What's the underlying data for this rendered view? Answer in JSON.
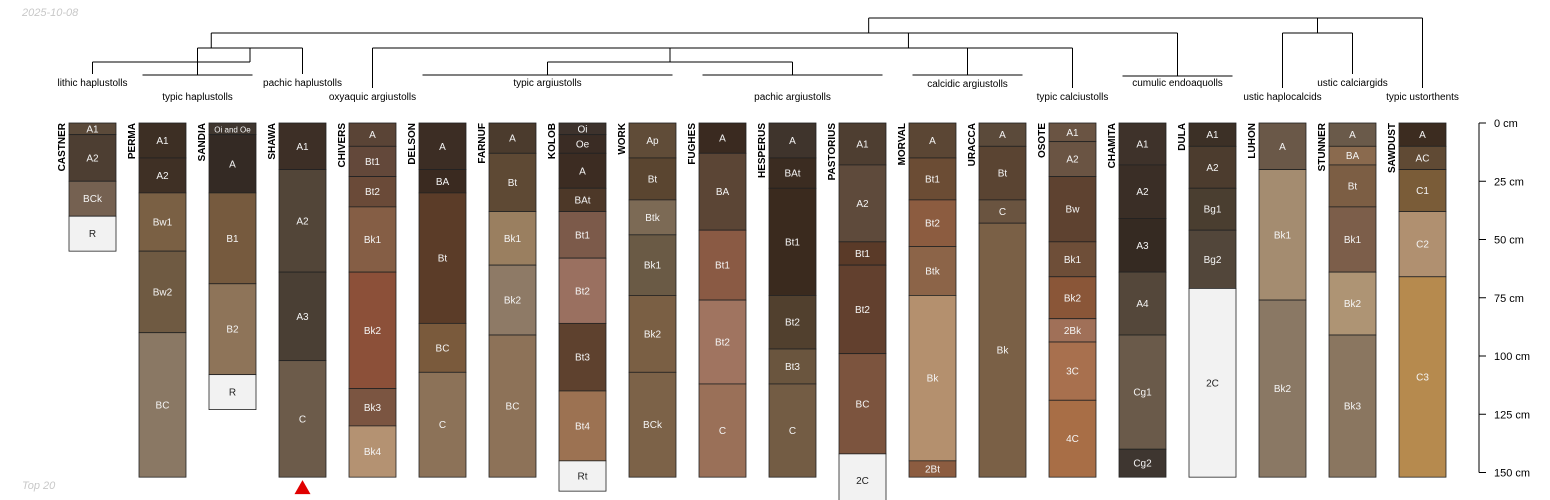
{
  "date": "2025-10-08",
  "footer": "Top 20",
  "depth_axis": {
    "unit": "cm",
    "max": 150,
    "ticks": [
      {
        "value": 0,
        "label": "0 cm"
      },
      {
        "value": 25,
        "label": "25 cm"
      },
      {
        "value": 50,
        "label": "50 cm"
      },
      {
        "value": 75,
        "label": "75 cm"
      },
      {
        "value": 100,
        "label": "100 cm"
      },
      {
        "value": 125,
        "label": "125 cm"
      },
      {
        "value": 150,
        "label": "150 cm"
      }
    ]
  },
  "colors": {
    "outline": "#222222",
    "marker": "#e00000",
    "tree": "#000000"
  },
  "profiles": [
    {
      "name": "CASTNER",
      "horizons": [
        {
          "name": "A1",
          "top": 0,
          "bottom": 5,
          "color": "#5b4a3a"
        },
        {
          "name": "A2",
          "top": 5,
          "bottom": 25,
          "color": "#4d3e32"
        },
        {
          "name": "BCk",
          "top": 25,
          "bottom": 40,
          "color": "#756151"
        },
        {
          "name": "R",
          "top": 40,
          "bottom": 55,
          "color": "#f2f2f2"
        }
      ]
    },
    {
      "name": "PERMA",
      "horizons": [
        {
          "name": "A1",
          "top": 0,
          "bottom": 15,
          "color": "#3d2f24"
        },
        {
          "name": "A2",
          "top": 15,
          "bottom": 30,
          "color": "#3f3025"
        },
        {
          "name": "Bw1",
          "top": 30,
          "bottom": 55,
          "color": "#7a6044"
        },
        {
          "name": "Bw2",
          "top": 55,
          "bottom": 90,
          "color": "#6f5a42"
        },
        {
          "name": "BC",
          "top": 90,
          "bottom": 152,
          "color": "#8a7864"
        }
      ]
    },
    {
      "name": "SANDIA",
      "horizons": [
        {
          "name": "Oi and Oe",
          "top": 0,
          "bottom": 5,
          "color": "#3f362f"
        },
        {
          "name": "A",
          "top": 5,
          "bottom": 30,
          "color": "#342a24"
        },
        {
          "name": "B1",
          "top": 30,
          "bottom": 69,
          "color": "#765a3e"
        },
        {
          "name": "B2",
          "top": 69,
          "bottom": 108,
          "color": "#8e7459"
        },
        {
          "name": "R",
          "top": 108,
          "bottom": 123,
          "color": "#f2f2f2"
        }
      ]
    },
    {
      "name": "SHAWA",
      "marker": true,
      "horizons": [
        {
          "name": "A1",
          "top": 0,
          "bottom": 20,
          "color": "#3d2f26"
        },
        {
          "name": "A2",
          "top": 20,
          "bottom": 64,
          "color": "#524538"
        },
        {
          "name": "A3",
          "top": 64,
          "bottom": 102,
          "color": "#4a3f34"
        },
        {
          "name": "C",
          "top": 102,
          "bottom": 152,
          "color": "#6c5b4a"
        }
      ]
    },
    {
      "name": "CHIVERS",
      "horizons": [
        {
          "name": "A",
          "top": 0,
          "bottom": 10,
          "color": "#5a4436"
        },
        {
          "name": "Bt1",
          "top": 10,
          "bottom": 23,
          "color": "#63483a"
        },
        {
          "name": "Bt2",
          "top": 23,
          "bottom": 36,
          "color": "#6a4a38"
        },
        {
          "name": "Bk1",
          "top": 36,
          "bottom": 64,
          "color": "#855e45"
        },
        {
          "name": "Bk2",
          "top": 64,
          "bottom": 114,
          "color": "#8c5039"
        },
        {
          "name": "Bk3",
          "top": 114,
          "bottom": 130,
          "color": "#7b5541"
        },
        {
          "name": "Bk4",
          "top": 130,
          "bottom": 152,
          "color": "#b49272"
        }
      ]
    },
    {
      "name": "DELSON",
      "horizons": [
        {
          "name": "A",
          "top": 0,
          "bottom": 20,
          "color": "#3c2d24"
        },
        {
          "name": "BA",
          "top": 20,
          "bottom": 30,
          "color": "#3a2a20"
        },
        {
          "name": "Bt",
          "top": 30,
          "bottom": 86,
          "color": "#5b3c28"
        },
        {
          "name": "BC",
          "top": 86,
          "bottom": 107,
          "color": "#7a5a3c"
        },
        {
          "name": "C",
          "top": 107,
          "bottom": 152,
          "color": "#8c7258"
        }
      ]
    },
    {
      "name": "FARNUF",
      "horizons": [
        {
          "name": "A",
          "top": 0,
          "bottom": 13,
          "color": "#4b3b2d"
        },
        {
          "name": "Bt",
          "top": 13,
          "bottom": 38,
          "color": "#5e4934"
        },
        {
          "name": "Bk1",
          "top": 38,
          "bottom": 61,
          "color": "#9a7f60"
        },
        {
          "name": "Bk2",
          "top": 61,
          "bottom": 91,
          "color": "#8e7a66"
        },
        {
          "name": "BC",
          "top": 91,
          "bottom": 152,
          "color": "#8d7258"
        }
      ]
    },
    {
      "name": "KOLOB",
      "horizons": [
        {
          "name": "Oi",
          "top": 0,
          "bottom": 5,
          "color": "#3d322c"
        },
        {
          "name": "Oe",
          "top": 5,
          "bottom": 13,
          "color": "#3a2c24"
        },
        {
          "name": "A",
          "top": 13,
          "bottom": 28,
          "color": "#3c2c22"
        },
        {
          "name": "BAt",
          "top": 28,
          "bottom": 38,
          "color": "#4d3828"
        },
        {
          "name": "Bt1",
          "top": 38,
          "bottom": 58,
          "color": "#7c5a4a"
        },
        {
          "name": "Bt2",
          "top": 58,
          "bottom": 86,
          "color": "#9a7060"
        },
        {
          "name": "Bt3",
          "top": 86,
          "bottom": 115,
          "color": "#5e412e"
        },
        {
          "name": "Bt4",
          "top": 115,
          "bottom": 145,
          "color": "#9c7252"
        },
        {
          "name": "Rt",
          "top": 145,
          "bottom": 158,
          "color": "#f2f2f2"
        }
      ]
    },
    {
      "name": "WORK",
      "horizons": [
        {
          "name": "Ap",
          "top": 0,
          "bottom": 15,
          "color": "#604c38"
        },
        {
          "name": "Bt",
          "top": 15,
          "bottom": 33,
          "color": "#5a4530"
        },
        {
          "name": "Btk",
          "top": 33,
          "bottom": 48,
          "color": "#7c6a55"
        },
        {
          "name": "Bk1",
          "top": 48,
          "bottom": 74,
          "color": "#6a5a45"
        },
        {
          "name": "Bk2",
          "top": 74,
          "bottom": 107,
          "color": "#7a5f44"
        },
        {
          "name": "BCk",
          "top": 107,
          "bottom": 152,
          "color": "#7c6248"
        }
      ]
    },
    {
      "name": "FUGHES",
      "horizons": [
        {
          "name": "A",
          "top": 0,
          "bottom": 13,
          "color": "#3a2a20"
        },
        {
          "name": "BA",
          "top": 13,
          "bottom": 46,
          "color": "#5b4535"
        },
        {
          "name": "Bt1",
          "top": 46,
          "bottom": 76,
          "color": "#8a5a44"
        },
        {
          "name": "Bt2",
          "top": 76,
          "bottom": 112,
          "color": "#a07460"
        },
        {
          "name": "C",
          "top": 112,
          "bottom": 152,
          "color": "#9a7058"
        }
      ]
    },
    {
      "name": "HESPERUS",
      "horizons": [
        {
          "name": "A",
          "top": 0,
          "bottom": 15,
          "color": "#3f342c"
        },
        {
          "name": "BAt",
          "top": 15,
          "bottom": 28,
          "color": "#3b2c21"
        },
        {
          "name": "Bt1",
          "top": 28,
          "bottom": 74,
          "color": "#3a2a1e"
        },
        {
          "name": "Bt2",
          "top": 74,
          "bottom": 97,
          "color": "#51402e"
        },
        {
          "name": "Bt3",
          "top": 97,
          "bottom": 112,
          "color": "#6a553e"
        },
        {
          "name": "C",
          "top": 112,
          "bottom": 152,
          "color": "#735c44"
        }
      ]
    },
    {
      "name": "PASTORIUS",
      "horizons": [
        {
          "name": "A1",
          "top": 0,
          "bottom": 18,
          "color": "#4e3e31"
        },
        {
          "name": "A2",
          "top": 18,
          "bottom": 51,
          "color": "#5e4a3b"
        },
        {
          "name": "Bt1",
          "top": 51,
          "bottom": 61,
          "color": "#5a3a28"
        },
        {
          "name": "Bt2",
          "top": 61,
          "bottom": 99,
          "color": "#62402e"
        },
        {
          "name": "BC",
          "top": 99,
          "bottom": 142,
          "color": "#7c543e"
        },
        {
          "name": "2C",
          "top": 142,
          "bottom": 165,
          "color": "#f2f2f2"
        }
      ]
    },
    {
      "name": "MORVAL",
      "horizons": [
        {
          "name": "A",
          "top": 0,
          "bottom": 15,
          "color": "#5b4634"
        },
        {
          "name": "Bt1",
          "top": 15,
          "bottom": 33,
          "color": "#6b4c34"
        },
        {
          "name": "Bt2",
          "top": 33,
          "bottom": 53,
          "color": "#8c5c40"
        },
        {
          "name": "Btk",
          "top": 53,
          "bottom": 74,
          "color": "#8c6448"
        },
        {
          "name": "Bk",
          "top": 74,
          "bottom": 145,
          "color": "#b4906e"
        },
        {
          "name": "2Bt",
          "top": 145,
          "bottom": 152,
          "color": "#8c5c40"
        }
      ]
    },
    {
      "name": "URACCA",
      "horizons": [
        {
          "name": "A",
          "top": 0,
          "bottom": 10,
          "color": "#5b4a3a"
        },
        {
          "name": "Bt",
          "top": 10,
          "bottom": 33,
          "color": "#5a4432"
        },
        {
          "name": "C",
          "top": 33,
          "bottom": 43,
          "color": "#6a5440"
        },
        {
          "name": "Bk",
          "top": 43,
          "bottom": 152,
          "color": "#7a6046"
        }
      ]
    },
    {
      "name": "OSOTE",
      "horizons": [
        {
          "name": "A1",
          "top": 0,
          "bottom": 8,
          "color": "#6a5443"
        },
        {
          "name": "A2",
          "top": 8,
          "bottom": 23,
          "color": "#6a5443"
        },
        {
          "name": "Bw",
          "top": 23,
          "bottom": 51,
          "color": "#5e4230"
        },
        {
          "name": "Bk1",
          "top": 51,
          "bottom": 66,
          "color": "#6e4e38"
        },
        {
          "name": "Bk2",
          "top": 66,
          "bottom": 84,
          "color": "#8a5638"
        },
        {
          "name": "2Bk",
          "top": 84,
          "bottom": 94,
          "color": "#a07058"
        },
        {
          "name": "3C",
          "top": 94,
          "bottom": 119,
          "color": "#a8704e"
        },
        {
          "name": "4C",
          "top": 119,
          "bottom": 152,
          "color": "#a86e46"
        }
      ]
    },
    {
      "name": "CHAMITA",
      "horizons": [
        {
          "name": "A1",
          "top": 0,
          "bottom": 18,
          "color": "#3e322a"
        },
        {
          "name": "A2",
          "top": 18,
          "bottom": 41,
          "color": "#3a2e26"
        },
        {
          "name": "A3",
          "top": 41,
          "bottom": 64,
          "color": "#352a22"
        },
        {
          "name": "A4",
          "top": 64,
          "bottom": 91,
          "color": "#54473a"
        },
        {
          "name": "Cg1",
          "top": 91,
          "bottom": 140,
          "color": "#6a5a4a"
        },
        {
          "name": "Cg2",
          "top": 140,
          "bottom": 152,
          "color": "#3e3630"
        }
      ]
    },
    {
      "name": "DULA",
      "horizons": [
        {
          "name": "A1",
          "top": 0,
          "bottom": 10,
          "color": "#3c3026"
        },
        {
          "name": "A2",
          "top": 10,
          "bottom": 28,
          "color": "#4c3c2e"
        },
        {
          "name": "Bg1",
          "top": 28,
          "bottom": 46,
          "color": "#4a3e30"
        },
        {
          "name": "Bg2",
          "top": 46,
          "bottom": 71,
          "color": "#52463a"
        },
        {
          "name": "2C",
          "top": 71,
          "bottom": 152,
          "color": "#f2f2f2"
        }
      ]
    },
    {
      "name": "LUHON",
      "horizons": [
        {
          "name": "A",
          "top": 0,
          "bottom": 20,
          "color": "#6a5848"
        },
        {
          "name": "Bk1",
          "top": 20,
          "bottom": 76,
          "color": "#a48c70"
        },
        {
          "name": "Bk2",
          "top": 76,
          "bottom": 152,
          "color": "#8a7864"
        }
      ]
    },
    {
      "name": "STUNNER",
      "horizons": [
        {
          "name": "A",
          "top": 0,
          "bottom": 10,
          "color": "#6a5a4a"
        },
        {
          "name": "BA",
          "top": 10,
          "bottom": 18,
          "color": "#8a6a4e"
        },
        {
          "name": "Bt",
          "top": 18,
          "bottom": 36,
          "color": "#7c5e44"
        },
        {
          "name": "Bk1",
          "top": 36,
          "bottom": 64,
          "color": "#7c5e4a"
        },
        {
          "name": "Bk2",
          "top": 64,
          "bottom": 91,
          "color": "#ae9474"
        },
        {
          "name": "Bk3",
          "top": 91,
          "bottom": 152,
          "color": "#8a7660"
        }
      ]
    },
    {
      "name": "SAWDUST",
      "horizons": [
        {
          "name": "A",
          "top": 0,
          "bottom": 10,
          "color": "#3c2c20"
        },
        {
          "name": "AC",
          "top": 10,
          "bottom": 20,
          "color": "#604a34"
        },
        {
          "name": "C1",
          "top": 20,
          "bottom": 38,
          "color": "#7a5c38"
        },
        {
          "name": "C2",
          "top": 38,
          "bottom": 66,
          "color": "#b09070"
        },
        {
          "name": "C3",
          "top": 66,
          "bottom": 152,
          "color": "#b68a4e"
        }
      ]
    }
  ],
  "taxa": [
    {
      "id": "t1",
      "label": "lithic haplustolls",
      "members": [
        "CASTNER"
      ]
    },
    {
      "id": "t2",
      "label": "typic haplustolls",
      "members": [
        "PERMA",
        "SANDIA"
      ]
    },
    {
      "id": "t3",
      "label": "pachic haplustolls",
      "members": [
        "SHAWA"
      ]
    },
    {
      "id": "t4",
      "label": "oxyaquic argiustolls",
      "members": [
        "CHIVERS"
      ]
    },
    {
      "id": "t5",
      "label": "typic argiustolls",
      "members": [
        "DELSON",
        "FARNUF",
        "KOLOB",
        "WORK"
      ]
    },
    {
      "id": "t6",
      "label": "pachic argiustolls",
      "members": [
        "FUGHES",
        "HESPERUS",
        "PASTORIUS"
      ]
    },
    {
      "id": "t7",
      "label": "calcidic argiustolls",
      "members": [
        "MORVAL",
        "URACCA"
      ]
    },
    {
      "id": "t8",
      "label": "typic calciustolls",
      "members": [
        "OSOTE"
      ]
    },
    {
      "id": "t9",
      "label": "cumulic endoaquolls",
      "members": [
        "CHAMITA",
        "DULA"
      ]
    },
    {
      "id": "t10",
      "label": "ustic haplocalcids",
      "members": [
        "LUHON"
      ]
    },
    {
      "id": "t11",
      "label": "ustic calciargids",
      "members": [
        "STUNNER"
      ]
    },
    {
      "id": "t12",
      "label": "typic ustorthents",
      "members": [
        "SAWDUST"
      ]
    }
  ]
}
